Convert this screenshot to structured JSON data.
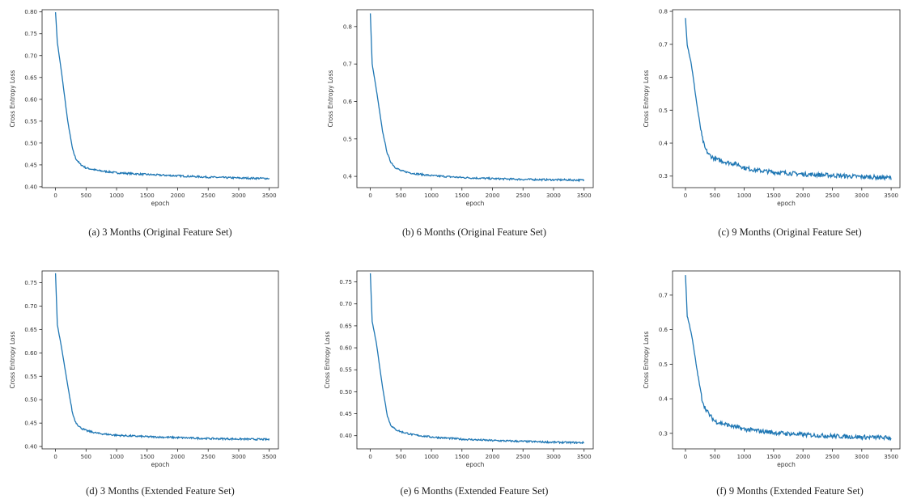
{
  "chart_data": [
    {
      "type": "line",
      "caption": "(a) 3 Months (Original Feature Set)",
      "xlabel": "epoch",
      "ylabel": "Cross Entropy Loss",
      "xlim": [
        -220,
        3650
      ],
      "ylim": [
        0.398,
        0.805
      ],
      "xticks": [
        0,
        500,
        1000,
        1500,
        2000,
        2500,
        3000,
        3500
      ],
      "yticks": [
        0.4,
        0.45,
        0.5,
        0.55,
        0.6,
        0.65,
        0.7,
        0.75,
        0.8
      ],
      "ytick_labels": [
        "0.40",
        "0.45",
        "0.50",
        "0.55",
        "0.60",
        "0.65",
        "0.70",
        "0.75",
        "0.80"
      ],
      "color": "#1f77b4",
      "series": [
        {
          "x": [
            0,
            30,
            100,
            200,
            280,
            330,
            400,
            500,
            700,
            1000,
            1500,
            2000,
            2500,
            3000,
            3500
          ],
          "y": [
            0.8,
            0.73,
            0.66,
            0.55,
            0.485,
            0.465,
            0.452,
            0.443,
            0.437,
            0.432,
            0.428,
            0.425,
            0.422,
            0.42,
            0.419
          ]
        }
      ]
    },
    {
      "type": "line",
      "caption": "(b) 6 Months (Original Feature Set)",
      "xlabel": "epoch",
      "ylabel": "Cross Entropy Loss",
      "xlim": [
        -220,
        3650
      ],
      "ylim": [
        0.37,
        0.845
      ],
      "xticks": [
        0,
        500,
        1000,
        1500,
        2000,
        2500,
        3000,
        3500
      ],
      "yticks": [
        0.4,
        0.5,
        0.6,
        0.7,
        0.8
      ],
      "ytick_labels": [
        "0.4",
        "0.5",
        "0.6",
        "0.7",
        "0.8"
      ],
      "color": "#1f77b4",
      "series": [
        {
          "x": [
            0,
            30,
            100,
            200,
            280,
            330,
            400,
            500,
            700,
            1000,
            1500,
            2000,
            2500,
            3000,
            3500
          ],
          "y": [
            0.835,
            0.7,
            0.63,
            0.52,
            0.46,
            0.44,
            0.425,
            0.415,
            0.408,
            0.402,
            0.397,
            0.394,
            0.392,
            0.391,
            0.39
          ]
        }
      ]
    },
    {
      "type": "line",
      "caption": "(c) 9 Months (Original Feature Set)",
      "xlabel": "epoch",
      "ylabel": "Cross Entropy Loss",
      "xlim": [
        -220,
        3650
      ],
      "ylim": [
        0.265,
        0.805
      ],
      "xticks": [
        0,
        500,
        1000,
        1500,
        2000,
        2500,
        3000,
        3500
      ],
      "yticks": [
        0.3,
        0.4,
        0.5,
        0.6,
        0.7,
        0.8
      ],
      "ytick_labels": [
        "0.3",
        "0.4",
        "0.5",
        "0.6",
        "0.7",
        "0.8"
      ],
      "color": "#1f77b4",
      "series": [
        {
          "x": [
            0,
            30,
            100,
            200,
            280,
            330,
            400,
            500,
            700,
            900,
            1000,
            1200,
            1500,
            2000,
            2500,
            3000,
            3500
          ],
          "y": [
            0.78,
            0.7,
            0.64,
            0.51,
            0.42,
            0.385,
            0.365,
            0.352,
            0.342,
            0.335,
            0.325,
            0.318,
            0.312,
            0.306,
            0.302,
            0.298,
            0.295
          ]
        }
      ]
    },
    {
      "type": "line",
      "caption": "(d) 3 Months (Extended Feature Set)",
      "xlabel": "epoch",
      "ylabel": "Cross Entropy Loss",
      "xlim": [
        -220,
        3650
      ],
      "ylim": [
        0.395,
        0.775
      ],
      "xticks": [
        0,
        500,
        1000,
        1500,
        2000,
        2500,
        3000,
        3500
      ],
      "yticks": [
        0.4,
        0.45,
        0.5,
        0.55,
        0.6,
        0.65,
        0.7,
        0.75
      ],
      "ytick_labels": [
        "0.40",
        "0.45",
        "0.50",
        "0.55",
        "0.60",
        "0.65",
        "0.70",
        "0.75"
      ],
      "color": "#1f77b4",
      "series": [
        {
          "x": [
            0,
            30,
            100,
            200,
            280,
            330,
            400,
            500,
            700,
            1000,
            1500,
            2000,
            2500,
            3000,
            3500
          ],
          "y": [
            0.77,
            0.66,
            0.61,
            0.53,
            0.47,
            0.452,
            0.441,
            0.434,
            0.428,
            0.424,
            0.421,
            0.419,
            0.417,
            0.416,
            0.415
          ]
        }
      ]
    },
    {
      "type": "line",
      "caption": "(e) 6 Months (Extended Feature Set)",
      "xlabel": "epoch",
      "ylabel": "Cross Entropy Loss",
      "xlim": [
        -220,
        3650
      ],
      "ylim": [
        0.37,
        0.775
      ],
      "xticks": [
        0,
        500,
        1000,
        1500,
        2000,
        2500,
        3000,
        3500
      ],
      "yticks": [
        0.4,
        0.45,
        0.5,
        0.55,
        0.6,
        0.65,
        0.7,
        0.75
      ],
      "ytick_labels": [
        "0.40",
        "0.45",
        "0.50",
        "0.55",
        "0.60",
        "0.65",
        "0.70",
        "0.75"
      ],
      "color": "#1f77b4",
      "series": [
        {
          "x": [
            0,
            30,
            100,
            200,
            280,
            330,
            400,
            500,
            700,
            1000,
            1500,
            2000,
            2500,
            3000,
            3500
          ],
          "y": [
            0.77,
            0.66,
            0.61,
            0.51,
            0.445,
            0.425,
            0.415,
            0.409,
            0.402,
            0.397,
            0.392,
            0.389,
            0.387,
            0.385,
            0.384
          ]
        }
      ]
    },
    {
      "type": "line",
      "caption": "(f) 9 Months (Extended Feature Set)",
      "xlabel": "epoch",
      "ylabel": "Cross Entropy Loss",
      "xlim": [
        -220,
        3650
      ],
      "ylim": [
        0.255,
        0.77
      ],
      "xticks": [
        0,
        500,
        1000,
        1500,
        2000,
        2500,
        3000,
        3500
      ],
      "yticks": [
        0.3,
        0.4,
        0.5,
        0.6,
        0.7
      ],
      "ytick_labels": [
        "0.3",
        "0.4",
        "0.5",
        "0.6",
        "0.7"
      ],
      "color": "#1f77b4",
      "series": [
        {
          "x": [
            0,
            30,
            100,
            200,
            280,
            330,
            400,
            500,
            700,
            1000,
            1500,
            2000,
            2500,
            3000,
            3500
          ],
          "y": [
            0.76,
            0.64,
            0.59,
            0.48,
            0.4,
            0.375,
            0.355,
            0.335,
            0.325,
            0.312,
            0.302,
            0.296,
            0.292,
            0.289,
            0.287
          ]
        }
      ]
    }
  ]
}
